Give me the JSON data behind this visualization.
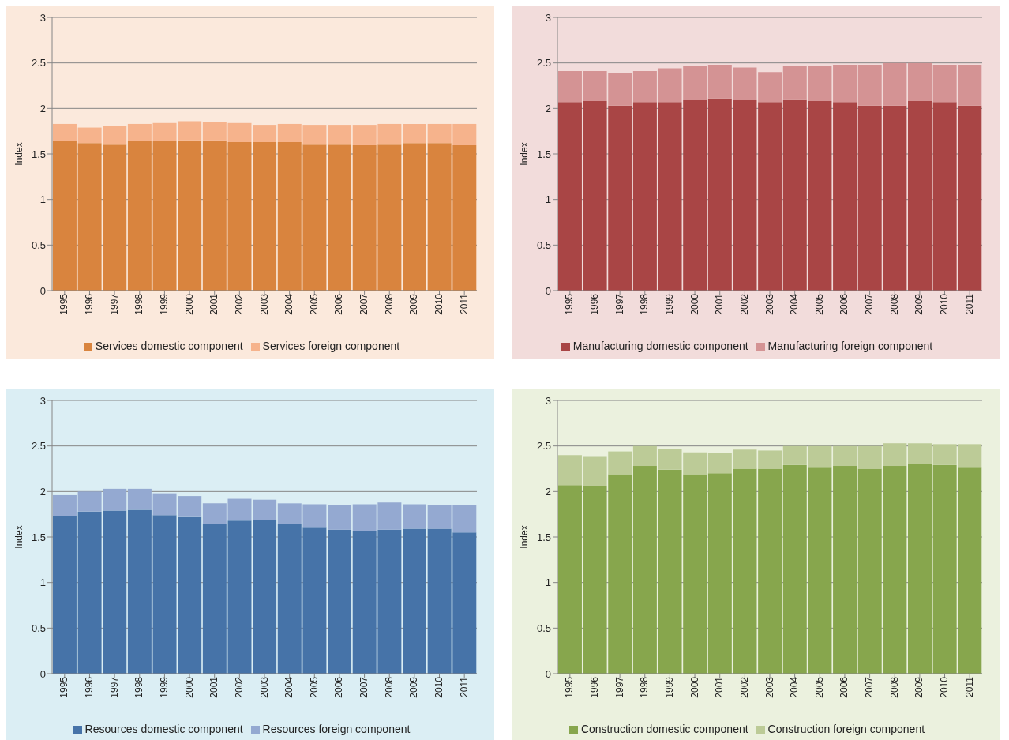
{
  "chart_data": [
    {
      "type": "bar",
      "stacked": true,
      "ylabel": "Index",
      "categories": [
        "1995",
        "1996",
        "1997",
        "1998",
        "1999",
        "2000",
        "2001",
        "2002",
        "2003",
        "2004",
        "2005",
        "2006",
        "2007",
        "2008",
        "2009",
        "2010",
        "2011"
      ],
      "ylim": [
        0,
        3
      ],
      "yticks": [
        0,
        0.5,
        1,
        1.5,
        2,
        2.5,
        3
      ],
      "grid": "y",
      "legend": "bottom",
      "series": [
        {
          "name": "Services domestic component",
          "color": "#d9843e",
          "values": [
            1.64,
            1.62,
            1.61,
            1.64,
            1.64,
            1.65,
            1.65,
            1.63,
            1.63,
            1.63,
            1.61,
            1.61,
            1.6,
            1.61,
            1.62,
            1.62,
            1.6
          ]
        },
        {
          "name": "Services foreign component",
          "color": "#f6b38c",
          "values": [
            0.19,
            0.17,
            0.2,
            0.19,
            0.2,
            0.21,
            0.2,
            0.21,
            0.19,
            0.2,
            0.21,
            0.21,
            0.22,
            0.22,
            0.21,
            0.21,
            0.23
          ]
        }
      ]
    },
    {
      "type": "bar",
      "stacked": true,
      "ylabel": "Index",
      "categories": [
        "1995",
        "1996",
        "1997",
        "1998",
        "1999",
        "2000",
        "2001",
        "2002",
        "2003",
        "2004",
        "2005",
        "2006",
        "2007",
        "2008",
        "2009",
        "2010",
        "2011"
      ],
      "ylim": [
        0,
        3
      ],
      "yticks": [
        0,
        0.5,
        1,
        1.5,
        2,
        2.5,
        3
      ],
      "grid": "y",
      "legend": "bottom",
      "series": [
        {
          "name": "Manufacturing domestic component",
          "color": "#a94545",
          "values": [
            2.07,
            2.08,
            2.03,
            2.07,
            2.07,
            2.09,
            2.11,
            2.09,
            2.07,
            2.1,
            2.08,
            2.07,
            2.03,
            2.03,
            2.08,
            2.07,
            2.03
          ]
        },
        {
          "name": "Manufacturing foreign component",
          "color": "#d49394",
          "values": [
            0.34,
            0.33,
            0.36,
            0.34,
            0.37,
            0.38,
            0.37,
            0.36,
            0.33,
            0.37,
            0.39,
            0.41,
            0.45,
            0.47,
            0.42,
            0.41,
            0.45
          ]
        }
      ]
    },
    {
      "type": "bar",
      "stacked": true,
      "ylabel": "Index",
      "categories": [
        "1995",
        "1996",
        "1997",
        "1998",
        "1999",
        "2000",
        "2001",
        "2002",
        "2003",
        "2004",
        "2005",
        "2006",
        "2007",
        "2008",
        "2009",
        "2010",
        "2011"
      ],
      "ylim": [
        0,
        3
      ],
      "yticks": [
        0,
        0.5,
        1,
        1.5,
        2,
        2.5,
        3
      ],
      "grid": "y",
      "legend": "bottom",
      "series": [
        {
          "name": "Resources domestic component",
          "color": "#4673a8",
          "values": [
            1.73,
            1.78,
            1.79,
            1.8,
            1.74,
            1.72,
            1.64,
            1.68,
            1.69,
            1.64,
            1.61,
            1.58,
            1.57,
            1.58,
            1.59,
            1.59,
            1.55
          ]
        },
        {
          "name": "Resources foreign component",
          "color": "#94a9d1",
          "values": [
            0.23,
            0.22,
            0.24,
            0.23,
            0.24,
            0.23,
            0.23,
            0.24,
            0.22,
            0.23,
            0.25,
            0.27,
            0.29,
            0.3,
            0.27,
            0.26,
            0.3
          ]
        }
      ]
    },
    {
      "type": "bar",
      "stacked": true,
      "ylabel": "Index",
      "categories": [
        "1995",
        "1996",
        "1997",
        "1998",
        "1999",
        "2000",
        "2001",
        "2002",
        "2003",
        "2004",
        "2005",
        "2006",
        "2007",
        "2008",
        "2009",
        "2010",
        "2011"
      ],
      "ylim": [
        0,
        3
      ],
      "yticks": [
        0,
        0.5,
        1,
        1.5,
        2,
        2.5,
        3
      ],
      "grid": "y",
      "legend": "bottom",
      "series": [
        {
          "name": "Construction domestic component",
          "color": "#87a64d",
          "values": [
            2.07,
            2.06,
            2.19,
            2.28,
            2.24,
            2.19,
            2.2,
            2.25,
            2.25,
            2.29,
            2.27,
            2.28,
            2.25,
            2.28,
            2.3,
            2.29,
            2.27
          ]
        },
        {
          "name": "Construction foreign component",
          "color": "#bccb97",
          "values": [
            0.33,
            0.32,
            0.25,
            0.22,
            0.23,
            0.24,
            0.22,
            0.21,
            0.2,
            0.21,
            0.23,
            0.22,
            0.25,
            0.25,
            0.23,
            0.23,
            0.25
          ]
        }
      ]
    }
  ]
}
